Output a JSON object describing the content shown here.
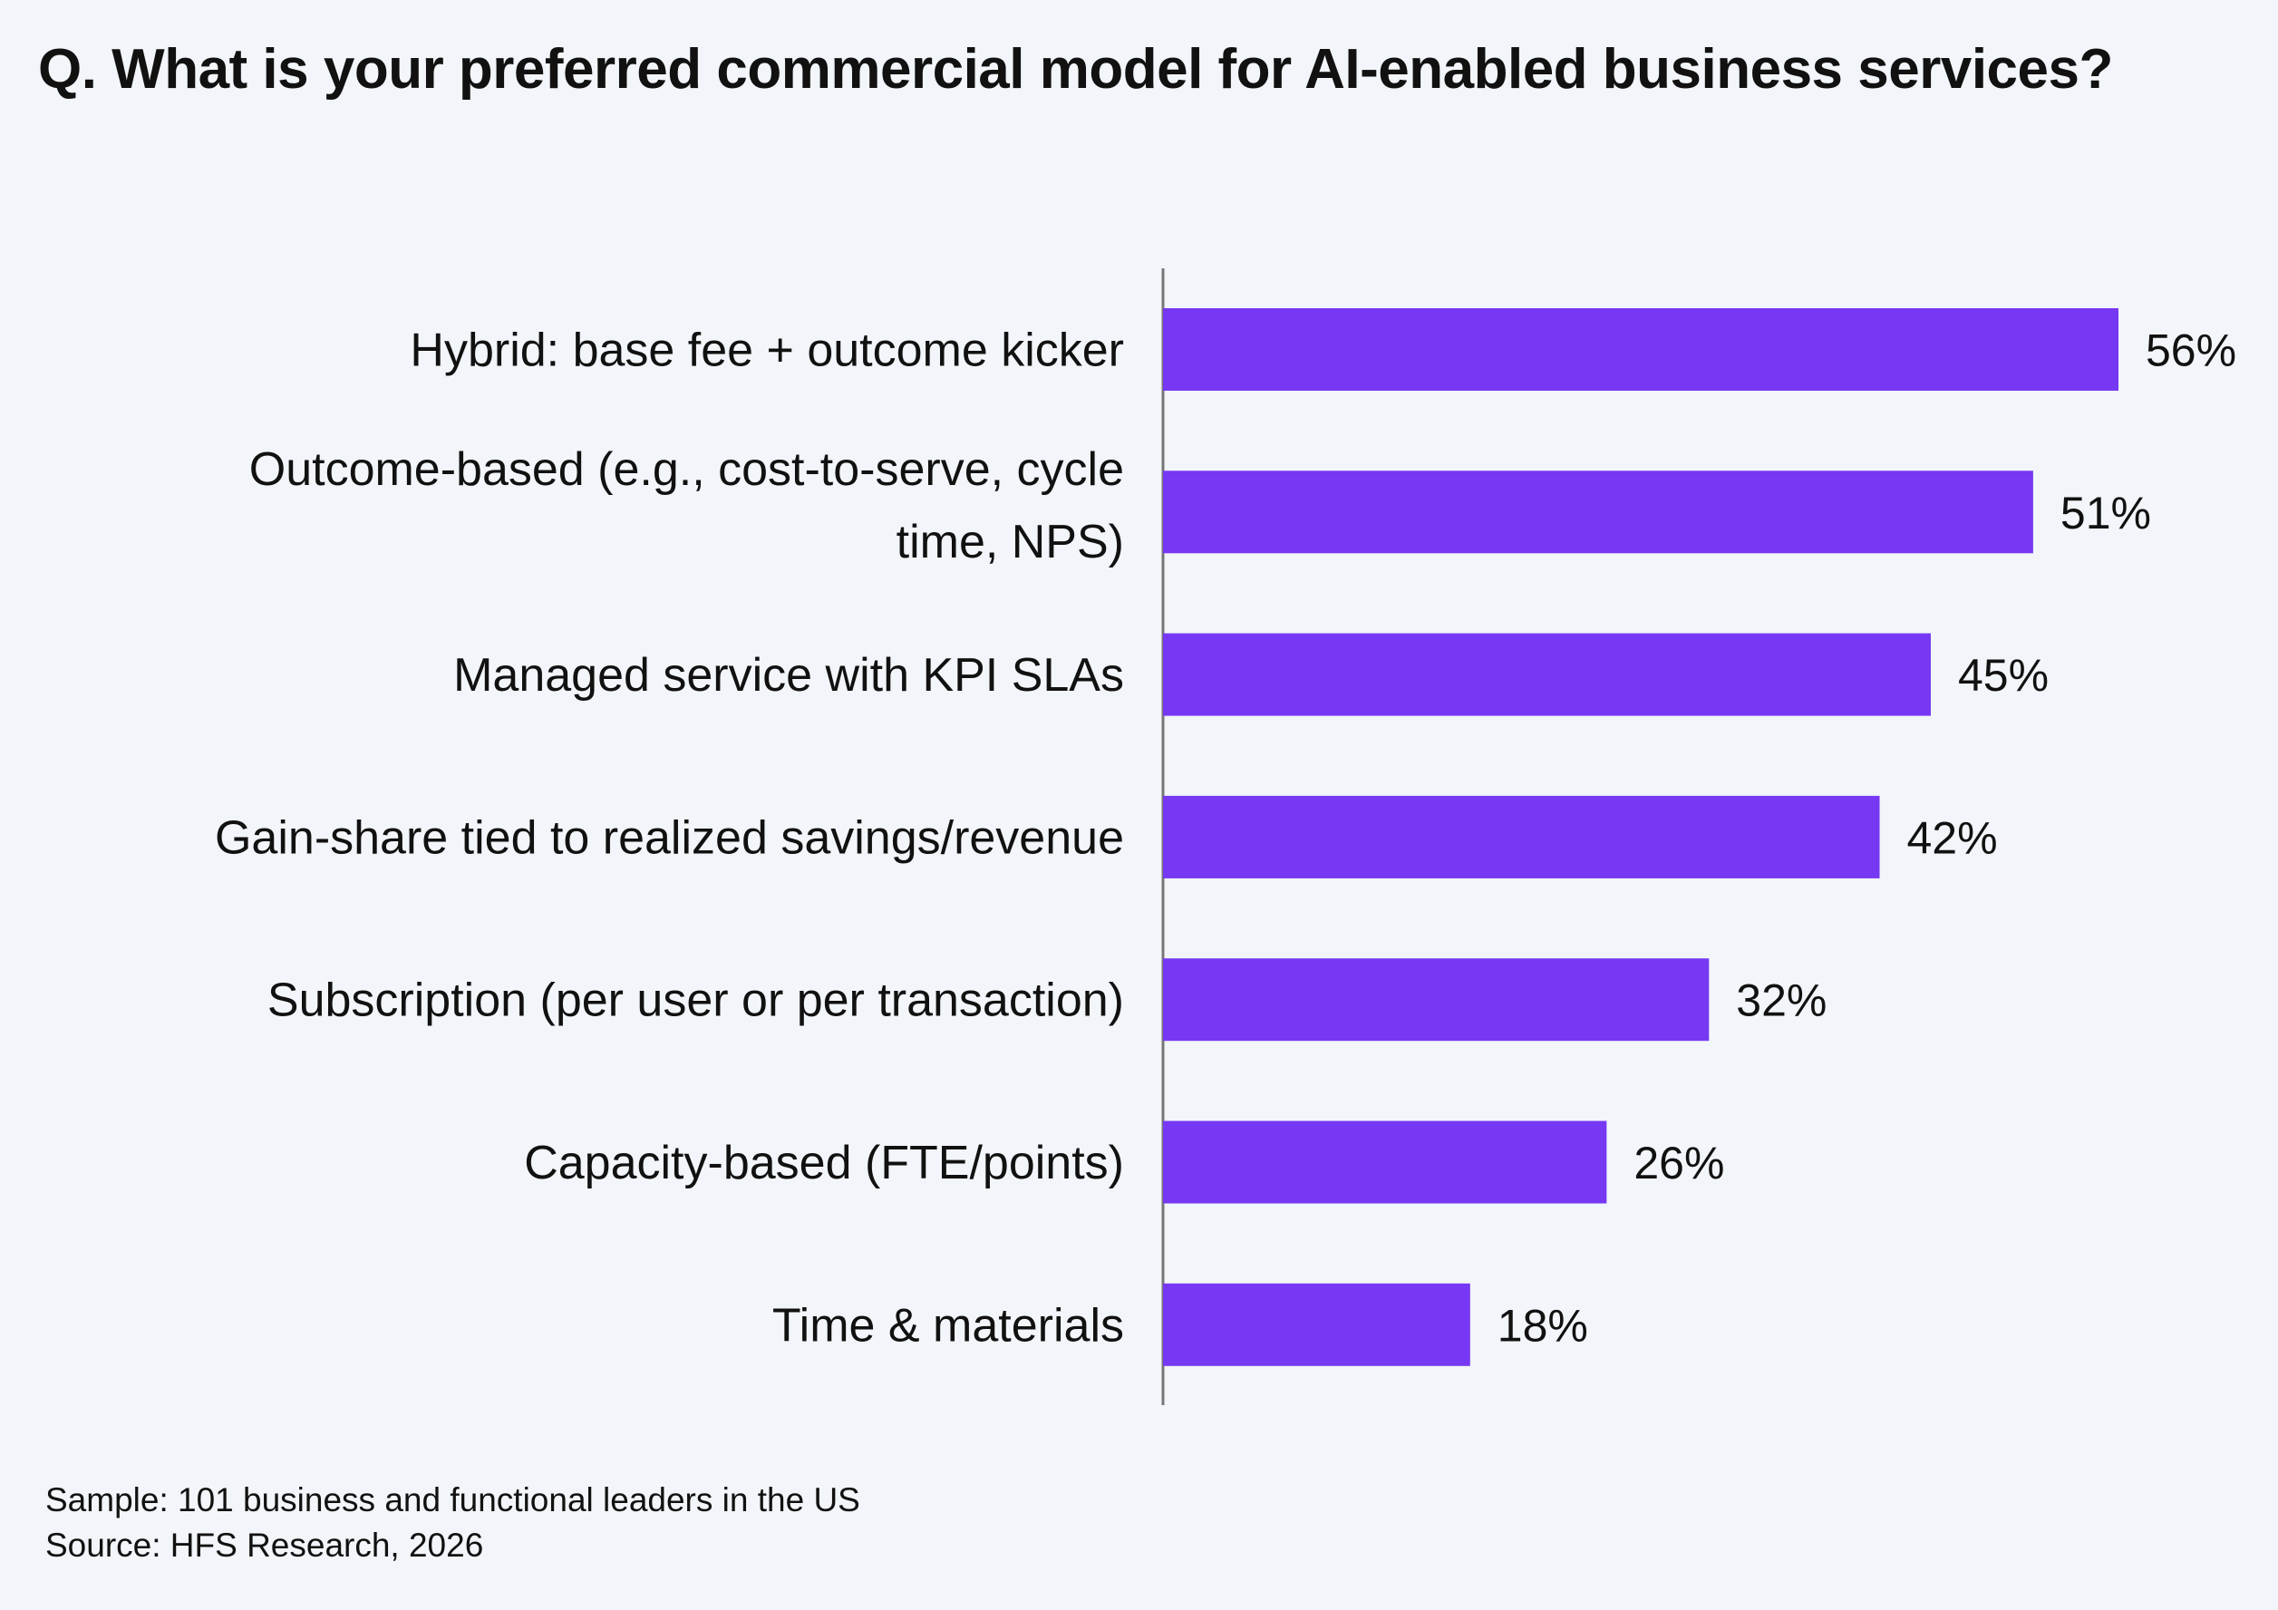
{
  "title": "Q. What is your preferred commercial model for AI-enabled business services?",
  "footer": {
    "sample": "Sample: 101 business and functional leaders in the US",
    "source": "Source: HFS Research, 2026"
  },
  "colors": {
    "bar": "#7638f2",
    "axis": "#777777",
    "background": "#f2f5f9"
  },
  "chart_data": {
    "type": "bar",
    "orientation": "horizontal",
    "title": "Q. What is your preferred commercial model for AI-enabled business services?",
    "categories": [
      [
        "Hybrid: base fee + outcome kicker"
      ],
      [
        "Outcome-based (e.g., cost-to-serve, cycle",
        "time, NPS)"
      ],
      [
        "Managed service with KPI SLAs"
      ],
      [
        "Gain-share tied to realized savings/revenue"
      ],
      [
        "Subscription (per user or per transaction)"
      ],
      [
        "Capacity-based (FTE/points)"
      ],
      [
        "Time & materials"
      ]
    ],
    "values": [
      56,
      51,
      45,
      42,
      32,
      26,
      18
    ],
    "value_labels": [
      "56%",
      "51%",
      "45%",
      "42%",
      "32%",
      "26%",
      "18%"
    ],
    "unit": "%",
    "xlim": [
      0,
      56
    ],
    "grid": false,
    "legend": "none"
  }
}
